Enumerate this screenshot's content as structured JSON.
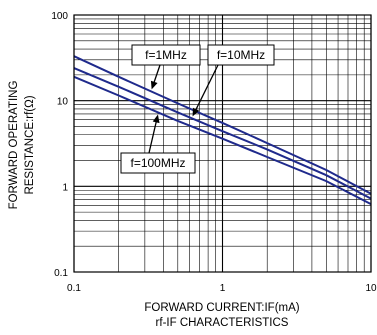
{
  "chart_data": {
    "type": "line",
    "title": "",
    "subtitle": "rf-IF CHARACTERISTICS",
    "xlabel": "FORWARD CURRENT:IF(mA)",
    "ylabel_lines": [
      "FORWARD OPERATING",
      "RESISTANCE:rf(Ω)"
    ],
    "x_scale": "log",
    "y_scale": "log",
    "xlim": [
      0.1,
      10
    ],
    "ylim": [
      0.1,
      100
    ],
    "x_ticks": [
      0.1,
      1,
      10
    ],
    "x_tick_labels": [
      "0.1",
      "1",
      "10"
    ],
    "y_ticks": [
      0.1,
      1,
      10,
      100
    ],
    "y_tick_labels": [
      "0.1",
      "1",
      "10",
      "100"
    ],
    "grid": true,
    "line_color": "#1f2a8c",
    "series": [
      {
        "name": "f=1MHz",
        "x": [
          0.1,
          0.2,
          0.5,
          1,
          2,
          5,
          10
        ],
        "y": [
          33,
          19,
          9.3,
          5.5,
          3.2,
          1.55,
          0.82
        ]
      },
      {
        "name": "f=10MHz",
        "x": [
          0.1,
          0.2,
          0.5,
          1,
          2,
          5,
          10
        ],
        "y": [
          24,
          14.5,
          7.3,
          4.4,
          2.7,
          1.35,
          0.72
        ]
      },
      {
        "name": "f=100MHz",
        "x": [
          0.1,
          0.2,
          0.5,
          1,
          2,
          5,
          10
        ],
        "y": [
          19,
          11.5,
          5.8,
          3.6,
          2.2,
          1.15,
          0.62
        ]
      }
    ],
    "annotations": [
      {
        "label": "f=1MHz",
        "series": 0,
        "point_x": 0.33
      },
      {
        "label": "f=10MHz",
        "series": 1,
        "point_x": 0.62
      },
      {
        "label": "f=100MHz",
        "series": 2,
        "point_x": 0.37
      }
    ]
  }
}
